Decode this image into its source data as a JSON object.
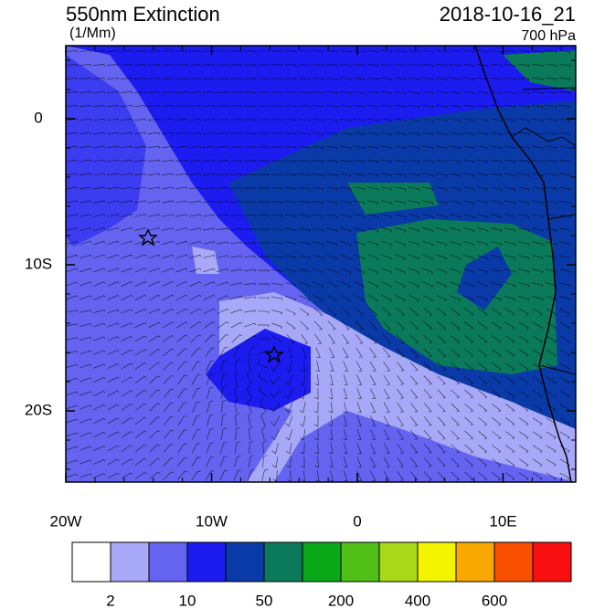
{
  "map": {
    "title": "550nm Extinction",
    "units": "(1/Mm)",
    "date": "2018-10-16_21",
    "level": "700 hPa",
    "lon_ticks": [
      {
        "value": -20,
        "label": "20W"
      },
      {
        "value": -10,
        "label": "10W"
      },
      {
        "value": 0,
        "label": "0"
      },
      {
        "value": 10,
        "label": "10E"
      }
    ],
    "lat_ticks": [
      {
        "value": 0,
        "label": "0"
      },
      {
        "value": -10,
        "label": "10S"
      },
      {
        "value": -20,
        "label": "20S"
      }
    ],
    "colorbar": {
      "colors": [
        "#ffffff",
        "#a8a8f8",
        "#6464f0",
        "#1c1cf0",
        "#0a3aa8",
        "#0a7a5a",
        "#08a818",
        "#50c018",
        "#a8d818",
        "#f4f400",
        "#f8a800",
        "#f85000",
        "#f81010"
      ],
      "labels": [
        "2",
        "10",
        "50",
        "200",
        "400",
        "600"
      ]
    }
  }
}
